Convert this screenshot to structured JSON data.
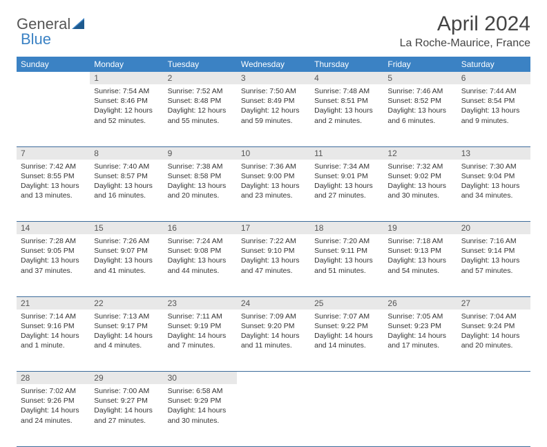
{
  "logo": {
    "word1": "General",
    "word2": "Blue"
  },
  "title": "April 2024",
  "location": "La Roche-Maurice, France",
  "colors": {
    "header_bg": "#3b82c4",
    "header_text": "#ffffff",
    "daynum_bg": "#e8e8e8",
    "rule": "#3b6a9a",
    "body_text": "#333333"
  },
  "weekdays": [
    "Sunday",
    "Monday",
    "Tuesday",
    "Wednesday",
    "Thursday",
    "Friday",
    "Saturday"
  ],
  "weeks": [
    {
      "nums": [
        "",
        "1",
        "2",
        "3",
        "4",
        "5",
        "6"
      ],
      "cells": [
        null,
        {
          "sunrise": "7:54 AM",
          "sunset": "8:46 PM",
          "daylight": "12 hours and 52 minutes."
        },
        {
          "sunrise": "7:52 AM",
          "sunset": "8:48 PM",
          "daylight": "12 hours and 55 minutes."
        },
        {
          "sunrise": "7:50 AM",
          "sunset": "8:49 PM",
          "daylight": "12 hours and 59 minutes."
        },
        {
          "sunrise": "7:48 AM",
          "sunset": "8:51 PM",
          "daylight": "13 hours and 2 minutes."
        },
        {
          "sunrise": "7:46 AM",
          "sunset": "8:52 PM",
          "daylight": "13 hours and 6 minutes."
        },
        {
          "sunrise": "7:44 AM",
          "sunset": "8:54 PM",
          "daylight": "13 hours and 9 minutes."
        }
      ]
    },
    {
      "nums": [
        "7",
        "8",
        "9",
        "10",
        "11",
        "12",
        "13"
      ],
      "cells": [
        {
          "sunrise": "7:42 AM",
          "sunset": "8:55 PM",
          "daylight": "13 hours and 13 minutes."
        },
        {
          "sunrise": "7:40 AM",
          "sunset": "8:57 PM",
          "daylight": "13 hours and 16 minutes."
        },
        {
          "sunrise": "7:38 AM",
          "sunset": "8:58 PM",
          "daylight": "13 hours and 20 minutes."
        },
        {
          "sunrise": "7:36 AM",
          "sunset": "9:00 PM",
          "daylight": "13 hours and 23 minutes."
        },
        {
          "sunrise": "7:34 AM",
          "sunset": "9:01 PM",
          "daylight": "13 hours and 27 minutes."
        },
        {
          "sunrise": "7:32 AM",
          "sunset": "9:02 PM",
          "daylight": "13 hours and 30 minutes."
        },
        {
          "sunrise": "7:30 AM",
          "sunset": "9:04 PM",
          "daylight": "13 hours and 34 minutes."
        }
      ]
    },
    {
      "nums": [
        "14",
        "15",
        "16",
        "17",
        "18",
        "19",
        "20"
      ],
      "cells": [
        {
          "sunrise": "7:28 AM",
          "sunset": "9:05 PM",
          "daylight": "13 hours and 37 minutes."
        },
        {
          "sunrise": "7:26 AM",
          "sunset": "9:07 PM",
          "daylight": "13 hours and 41 minutes."
        },
        {
          "sunrise": "7:24 AM",
          "sunset": "9:08 PM",
          "daylight": "13 hours and 44 minutes."
        },
        {
          "sunrise": "7:22 AM",
          "sunset": "9:10 PM",
          "daylight": "13 hours and 47 minutes."
        },
        {
          "sunrise": "7:20 AM",
          "sunset": "9:11 PM",
          "daylight": "13 hours and 51 minutes."
        },
        {
          "sunrise": "7:18 AM",
          "sunset": "9:13 PM",
          "daylight": "13 hours and 54 minutes."
        },
        {
          "sunrise": "7:16 AM",
          "sunset": "9:14 PM",
          "daylight": "13 hours and 57 minutes."
        }
      ]
    },
    {
      "nums": [
        "21",
        "22",
        "23",
        "24",
        "25",
        "26",
        "27"
      ],
      "cells": [
        {
          "sunrise": "7:14 AM",
          "sunset": "9:16 PM",
          "daylight": "14 hours and 1 minute."
        },
        {
          "sunrise": "7:13 AM",
          "sunset": "9:17 PM",
          "daylight": "14 hours and 4 minutes."
        },
        {
          "sunrise": "7:11 AM",
          "sunset": "9:19 PM",
          "daylight": "14 hours and 7 minutes."
        },
        {
          "sunrise": "7:09 AM",
          "sunset": "9:20 PM",
          "daylight": "14 hours and 11 minutes."
        },
        {
          "sunrise": "7:07 AM",
          "sunset": "9:22 PM",
          "daylight": "14 hours and 14 minutes."
        },
        {
          "sunrise": "7:05 AM",
          "sunset": "9:23 PM",
          "daylight": "14 hours and 17 minutes."
        },
        {
          "sunrise": "7:04 AM",
          "sunset": "9:24 PM",
          "daylight": "14 hours and 20 minutes."
        }
      ]
    },
    {
      "nums": [
        "28",
        "29",
        "30",
        "",
        "",
        "",
        ""
      ],
      "cells": [
        {
          "sunrise": "7:02 AM",
          "sunset": "9:26 PM",
          "daylight": "14 hours and 24 minutes."
        },
        {
          "sunrise": "7:00 AM",
          "sunset": "9:27 PM",
          "daylight": "14 hours and 27 minutes."
        },
        {
          "sunrise": "6:58 AM",
          "sunset": "9:29 PM",
          "daylight": "14 hours and 30 minutes."
        },
        null,
        null,
        null,
        null
      ]
    }
  ],
  "labels": {
    "sunrise": "Sunrise:",
    "sunset": "Sunset:",
    "daylight": "Daylight:"
  }
}
